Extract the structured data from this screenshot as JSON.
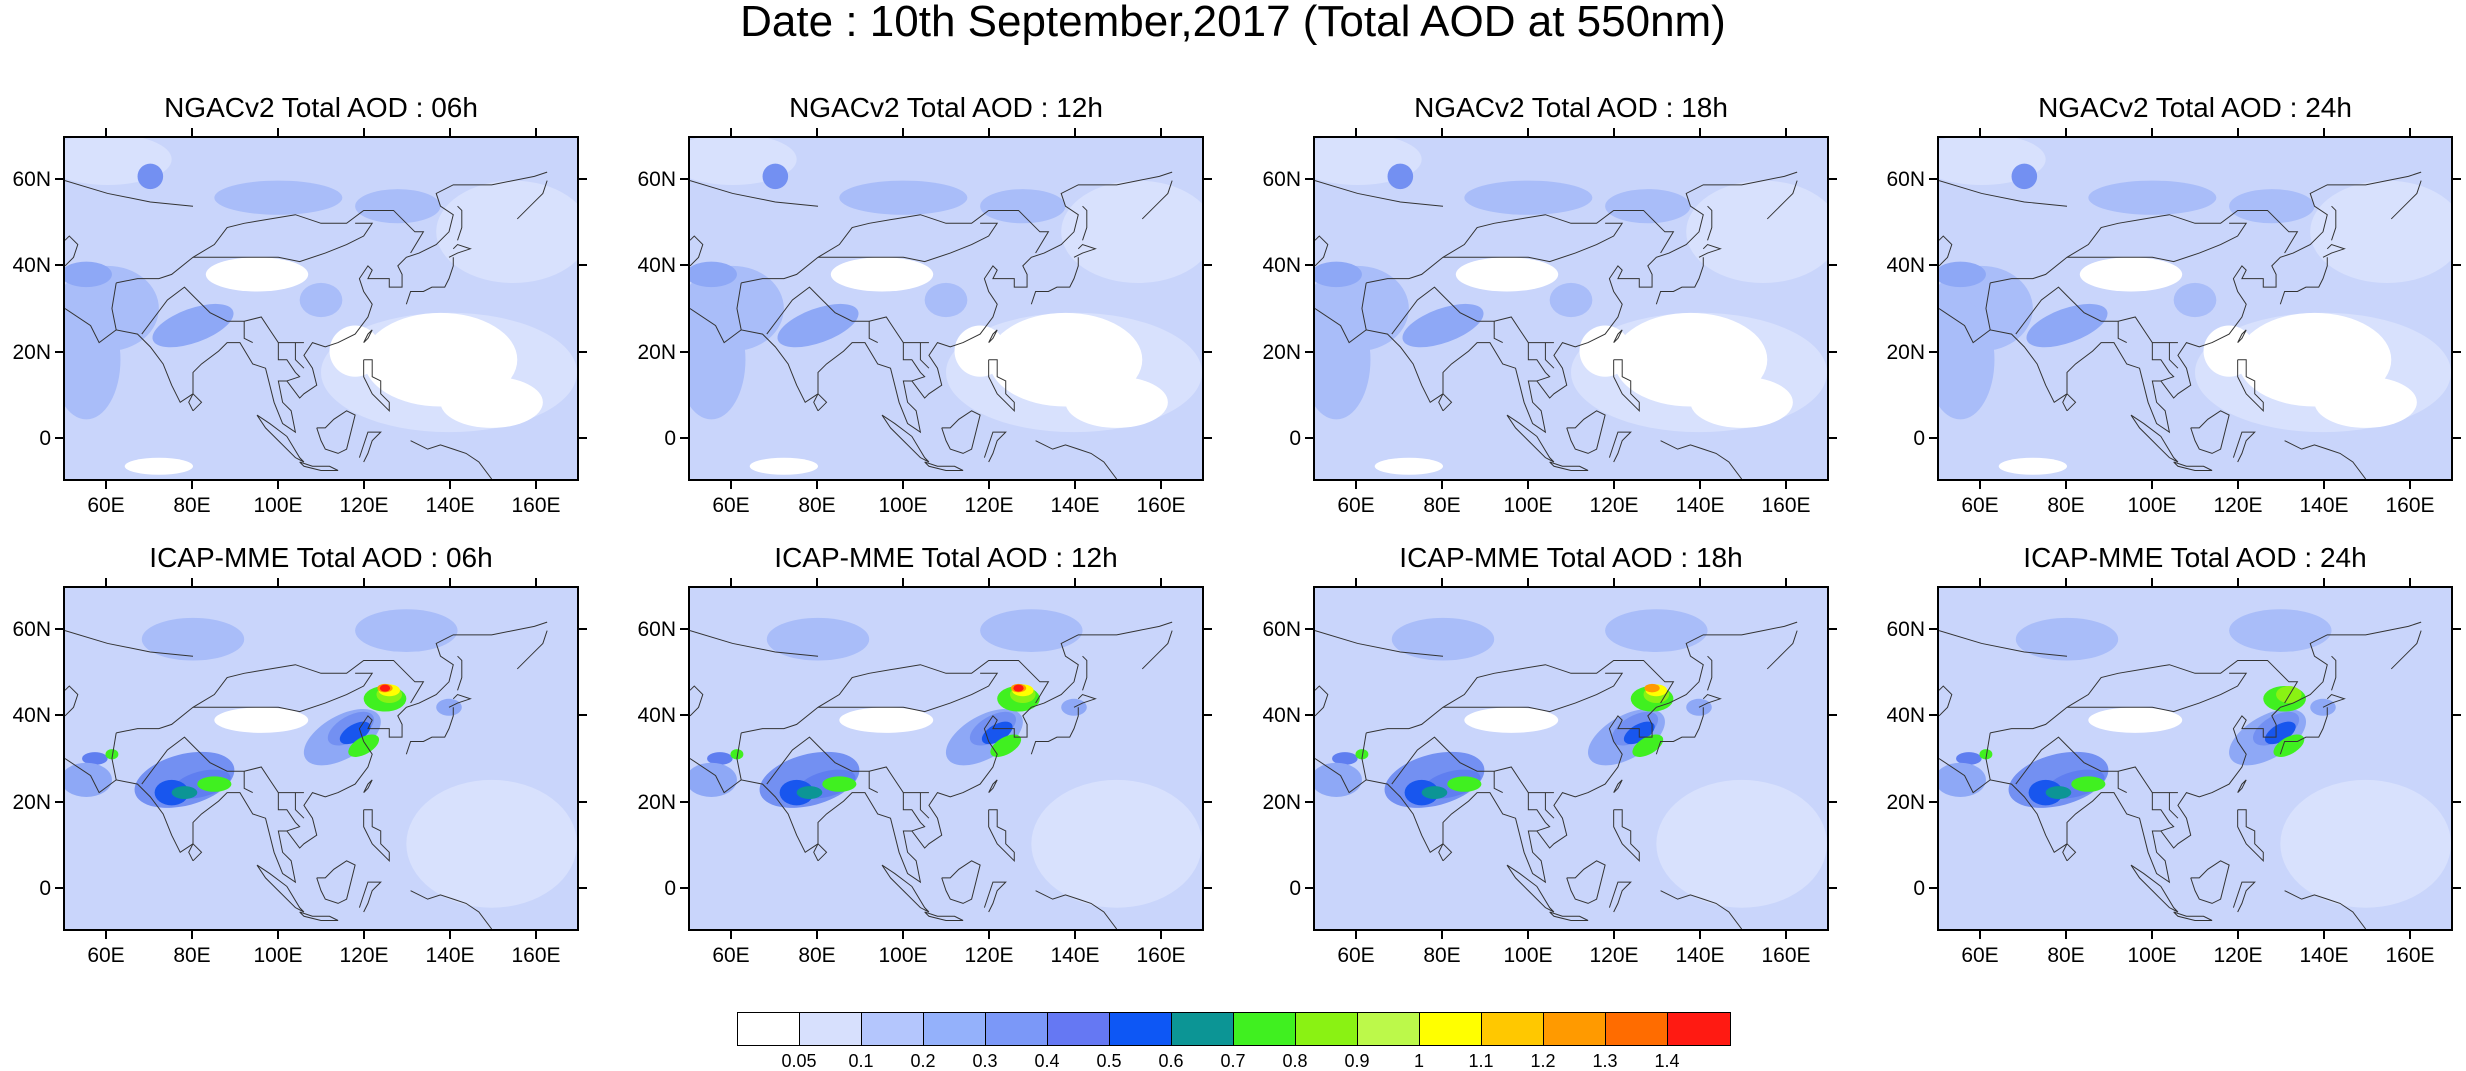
{
  "title": "Date : 10th September,2017 (Total AOD at 550nm)",
  "panels": [
    {
      "title": "NGACv2 Total AOD : 06h",
      "model": "NGACv2",
      "hour": "06h"
    },
    {
      "title": "NGACv2 Total AOD : 12h",
      "model": "NGACv2",
      "hour": "12h"
    },
    {
      "title": "NGACv2 Total AOD : 18h",
      "model": "NGACv2",
      "hour": "18h"
    },
    {
      "title": "NGACv2 Total AOD : 24h",
      "model": "NGACv2",
      "hour": "24h"
    },
    {
      "title": "ICAP-MME Total AOD : 06h",
      "model": "ICAP-MME",
      "hour": "06h"
    },
    {
      "title": "ICAP-MME Total AOD : 12h",
      "model": "ICAP-MME",
      "hour": "12h"
    },
    {
      "title": "ICAP-MME Total AOD : 18h",
      "model": "ICAP-MME",
      "hour": "18h"
    },
    {
      "title": "ICAP-MME Total AOD : 24h",
      "model": "ICAP-MME",
      "hour": "24h"
    }
  ],
  "lat_labels": [
    "60N",
    "40N",
    "20N",
    "0"
  ],
  "lon_labels": [
    "60E",
    "80E",
    "100E",
    "120E",
    "140E",
    "160E"
  ],
  "colorbar": {
    "labels": [
      "0.05",
      "0.1",
      "0.2",
      "0.3",
      "0.4",
      "0.5",
      "0.6",
      "0.7",
      "0.8",
      "0.9",
      "1",
      "1.1",
      "1.2",
      "1.3",
      "1.4"
    ],
    "colors": [
      "#ffffff",
      "#d7e0fd",
      "#b4c6fd",
      "#94b1fb",
      "#7b98f8",
      "#6578f3",
      "#0d57f5",
      "#0c9595",
      "#40f020",
      "#8af213",
      "#bcf94a",
      "#ffff00",
      "#ffc800",
      "#ff9a00",
      "#ff6c00",
      "#ff1a12"
    ]
  },
  "map_colors": {
    "base": "#c9d5fb",
    "light": "#d8e1fd",
    "clear": "#ffffff",
    "medium": "#a9bdf9",
    "darker": "#8ea8f6",
    "dark": "#7390f2",
    "deep": "#5f7ef0",
    "blue": "#1856ee",
    "teal": "#0c9595",
    "green": "#40f020",
    "lime": "#8af213",
    "yellow": "#ffff00",
    "orange": "#ff9a00",
    "red": "#ff1a12"
  }
}
